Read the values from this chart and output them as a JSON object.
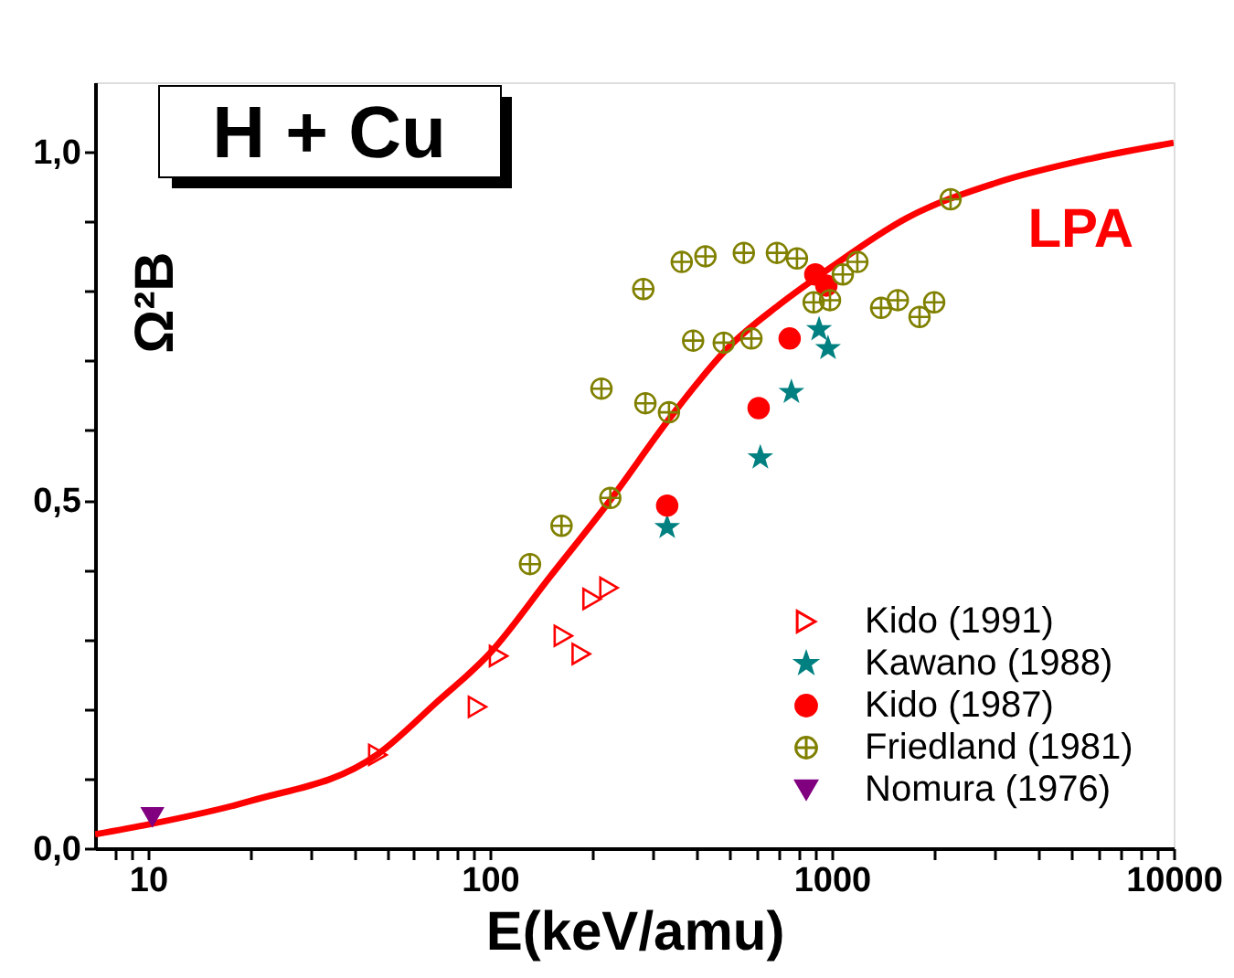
{
  "chart_data": {
    "type": "scatter",
    "title": "H + Cu",
    "xlabel": "E(keV/amu)",
    "ylabel": "Ω²B",
    "log": "x",
    "xlim": [
      7,
      10000
    ],
    "xticks": [
      {
        "value": 8,
        "label": null
      },
      {
        "value": 9,
        "label": null
      },
      10,
      {
        "value": 20,
        "label": null
      },
      {
        "value": 30,
        "label": null
      },
      {
        "value": 40,
        "label": null
      },
      {
        "value": 50,
        "label": null
      },
      {
        "value": 60,
        "label": null
      },
      {
        "value": 70,
        "label": null
      },
      {
        "value": 80,
        "label": null
      },
      {
        "value": 90,
        "label": null
      },
      100,
      {
        "value": 200,
        "label": null
      },
      {
        "value": 300,
        "label": null
      },
      {
        "value": 400,
        "label": null
      },
      {
        "value": 500,
        "label": null
      },
      {
        "value": 600,
        "label": null
      },
      {
        "value": 700,
        "label": null
      },
      {
        "value": 800,
        "label": null
      },
      {
        "value": 900,
        "label": null
      },
      1000,
      {
        "value": 2000,
        "label": null
      },
      {
        "value": 3000,
        "label": null
      },
      {
        "value": 4000,
        "label": null
      },
      {
        "value": 5000,
        "label": null
      },
      {
        "value": 6000,
        "label": null
      },
      {
        "value": 7000,
        "label": null
      },
      {
        "value": 8000,
        "label": null
      },
      {
        "value": 9000,
        "label": null
      },
      10000
    ],
    "ylim": [
      0,
      1.1
    ],
    "yticks": [
      {
        "value": 0,
        "label": "0,0"
      },
      {
        "value": 0.1,
        "label": null
      },
      {
        "value": 0.2,
        "label": null
      },
      {
        "value": 0.3,
        "label": null
      },
      {
        "value": 0.4,
        "label": null
      },
      {
        "value": 0.5,
        "label": "0,5"
      },
      {
        "value": 0.6,
        "label": null
      },
      {
        "value": 0.7,
        "label": null
      },
      {
        "value": 0.8,
        "label": null
      },
      {
        "value": 0.9,
        "label": null
      },
      {
        "value": 1.0,
        "label": "1,0"
      }
    ],
    "grid": false,
    "legend": "bottom right",
    "series": [
      {
        "name": "LPA",
        "type": "line",
        "color": "#ff0000",
        "line_style": "solid",
        "marker": "none",
        "x": [
          7,
          10,
          20,
          47,
          70,
          100,
          150,
          225,
          334,
          500,
          700,
          1000,
          1656,
          3000,
          5680,
          10000
        ],
        "values": [
          0.02,
          0.034,
          0.068,
          0.135,
          0.21,
          0.28,
          0.39,
          0.5,
          0.616,
          0.72,
          0.78,
          0.835,
          0.905,
          0.955,
          0.99,
          1.013
        ]
      },
      {
        "name": "Kido (1991)",
        "color": "#ff0000",
        "marker": "triangle-right",
        "x": [
          47,
          92,
          106,
          164,
          185,
          199,
          223
        ],
        "values": [
          0.134,
          0.203,
          0.276,
          0.305,
          0.279,
          0.358,
          0.374
        ]
      },
      {
        "name": "Kawano (1988)",
        "color": "#008080",
        "marker": "star",
        "x": [
          330,
          618,
          762,
          918,
          975
        ],
        "values": [
          0.461,
          0.561,
          0.655,
          0.745,
          0.718
        ]
      },
      {
        "name": "Kido (1987)",
        "color": "#ff0000",
        "marker": "half-circle",
        "x": [
          330,
          611,
          753,
          895,
          964
        ],
        "values": [
          0.492,
          0.632,
          0.732,
          0.824,
          0.808
        ]
      },
      {
        "name": "Friedland (1981)",
        "color": "#808000",
        "marker": "cross",
        "x": [
          131,
          162,
          225,
          212,
          281,
          285,
          334,
          364,
          427,
          393,
          483,
          553,
          582,
          691,
          791,
          885,
          988,
          1077,
          1188,
          1394,
          1560,
          1806,
          1993,
          2226
        ],
        "values": [
          0.408,
          0.463,
          0.503,
          0.66,
          0.803,
          0.639,
          0.626,
          0.842,
          0.85,
          0.729,
          0.726,
          0.855,
          0.732,
          0.855,
          0.847,
          0.784,
          0.787,
          0.824,
          0.842,
          0.776,
          0.787,
          0.763,
          0.784,
          0.932
        ]
      },
      {
        "name": "Nomura (1976)",
        "color": "#800080",
        "marker": "triangle-down",
        "x": [
          10.3
        ],
        "values": [
          0.045
        ]
      }
    ]
  }
}
